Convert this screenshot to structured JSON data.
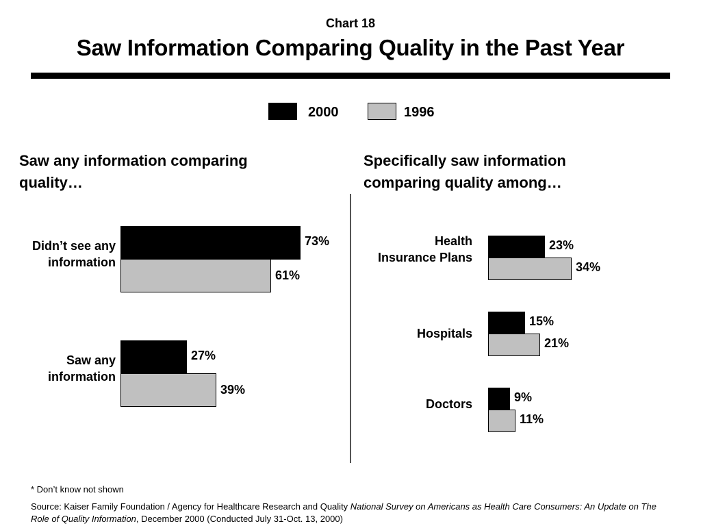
{
  "header": {
    "chart_number": "Chart 18",
    "title": "Saw Information Comparing Quality in the Past Year"
  },
  "legend": [
    {
      "label": "2000",
      "color": "#000000"
    },
    {
      "label": "1996",
      "color": "#c0c0c0"
    }
  ],
  "footer": {
    "footnote": "* Don’t know not shown",
    "source_prefix": "Source: Kaiser Family Foundation / Agency for Healthcare Research and Quality ",
    "source_italic": "National Survey on Americans as Health Care Consumers:  An Update on The Role of Quality Information",
    "source_suffix": ", December 2000 (Conducted July 31-Oct. 13, 2000)"
  },
  "chart_data": [
    {
      "type": "bar",
      "orientation": "horizontal",
      "title": "Saw any information comparing quality…",
      "categories": [
        "Didn’t see any information",
        "Saw any information"
      ],
      "series": [
        {
          "name": "2000",
          "values": [
            73,
            27
          ]
        },
        {
          "name": "1996",
          "values": [
            61,
            39
          ]
        }
      ],
      "value_labels": [
        [
          "73%",
          "27%"
        ],
        [
          "61%",
          "39%"
        ]
      ],
      "unit": "%",
      "colors": [
        "#000000",
        "#c0c0c0"
      ],
      "legend_position": "top-center",
      "grid": false
    },
    {
      "type": "bar",
      "orientation": "horizontal",
      "title": "Specifically saw information comparing quality among…",
      "categories": [
        "Health Insurance Plans",
        "Hospitals",
        "Doctors"
      ],
      "series": [
        {
          "name": "2000",
          "values": [
            23,
            15,
            9
          ]
        },
        {
          "name": "1996",
          "values": [
            34,
            21,
            11
          ]
        }
      ],
      "value_labels": [
        [
          "23%",
          "15%",
          "9%"
        ],
        [
          "34%",
          "21%",
          "11%"
        ]
      ],
      "unit": "%",
      "colors": [
        "#000000",
        "#c0c0c0"
      ],
      "legend_position": "top-center",
      "grid": false
    }
  ]
}
